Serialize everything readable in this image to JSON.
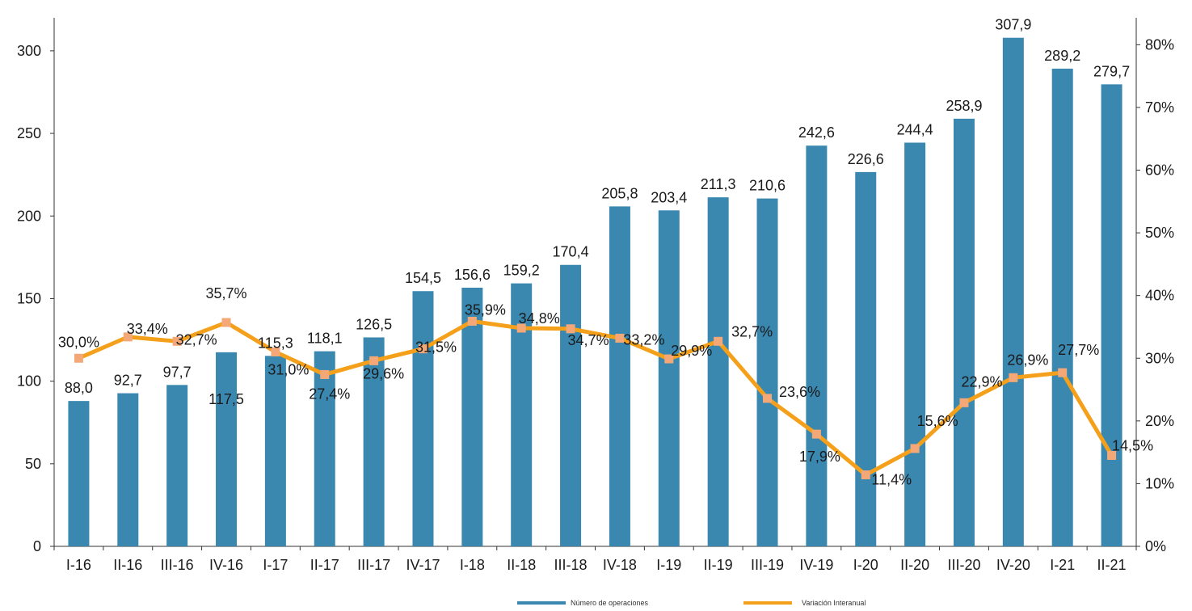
{
  "chart_data": {
    "type": "bar",
    "categories": [
      "I-16",
      "II-16",
      "III-16",
      "IV-16",
      "I-17",
      "II-17",
      "III-17",
      "IV-17",
      "I-18",
      "II-18",
      "III-18",
      "IV-18",
      "I-19",
      "II-19",
      "III-19",
      "IV-19",
      "I-20",
      "II-20",
      "III-20",
      "IV-20",
      "I-21",
      "II-21"
    ],
    "series": [
      {
        "name": "Número de operaciones",
        "type": "bar",
        "axis": "left",
        "color": "#3a87b0",
        "values": [
          88.0,
          92.7,
          97.7,
          117.5,
          115.3,
          118.1,
          126.5,
          154.5,
          156.6,
          159.2,
          170.4,
          205.8,
          203.4,
          211.3,
          210.6,
          242.6,
          226.6,
          244.4,
          258.9,
          307.9,
          289.2,
          279.7
        ],
        "labels": [
          "88,0",
          "92,7",
          "97,7",
          "117,5",
          "115,3",
          "118,1",
          "126,5",
          "154,5",
          "156,6",
          "159,2",
          "170,4",
          "205,8",
          "203,4",
          "211,3",
          "210,6",
          "242,6",
          "226,6",
          "244,4",
          "258,9",
          "307,9",
          "289,2",
          "279,7"
        ]
      },
      {
        "name": "Variación Interanual",
        "type": "line",
        "axis": "right",
        "color": "#f5a01a",
        "marker_color": "#f4a878",
        "values": [
          30.0,
          33.4,
          32.7,
          35.7,
          31.0,
          27.4,
          29.6,
          31.5,
          35.9,
          34.8,
          34.7,
          33.2,
          29.9,
          32.7,
          23.6,
          17.9,
          11.4,
          15.6,
          22.9,
          26.9,
          27.7,
          14.5
        ],
        "labels": [
          "30,0%",
          "33,4%",
          "32,7%",
          "35,7%",
          "31,0%",
          "27,4%",
          "29,6%",
          "31,5%",
          "35,9%",
          "34,8%",
          "34,7%",
          "33,2%",
          "29,9%",
          "32,7%",
          "23,6%",
          "17,9%",
          "11,4%",
          "15,6%",
          "22,9%",
          "26,9%",
          "27,7%",
          "14,5%"
        ]
      }
    ],
    "y_left": {
      "min": 0,
      "max": 320,
      "ticks": [
        0,
        50,
        100,
        150,
        200,
        250,
        300
      ],
      "tick_labels": [
        "0",
        "50",
        "100",
        "150",
        "200",
        "250",
        "300"
      ]
    },
    "y_right": {
      "min": 0,
      "max": 84.3,
      "ticks": [
        0,
        10,
        20,
        30,
        40,
        50,
        60,
        70,
        80
      ],
      "tick_labels": [
        "0%",
        "10%",
        "20%",
        "30%",
        "40%",
        "50%",
        "60%",
        "70%",
        "80%"
      ]
    },
    "title": "",
    "xlabel": "",
    "ylabel": "",
    "grid": false,
    "legend_position": "bottom"
  }
}
